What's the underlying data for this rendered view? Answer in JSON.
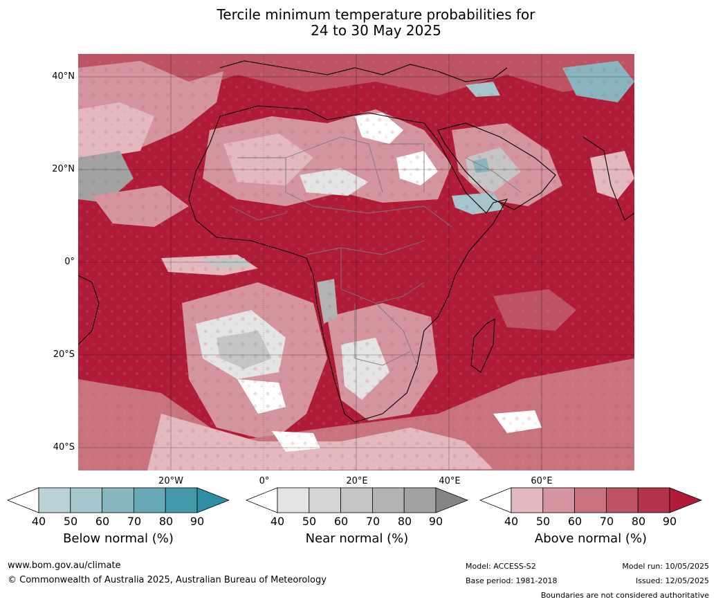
{
  "title": {
    "line1": "Tercile minimum temperature probabilities for",
    "line2": "24 to 30 May 2025"
  },
  "map": {
    "lat_labels": [
      "40°N",
      "20°N",
      "0°",
      "20°S",
      "40°S"
    ],
    "lon_labels": [
      "20°W",
      "0°",
      "20°E",
      "40°E",
      "60°E"
    ]
  },
  "legends": [
    {
      "title": "Below normal (%)",
      "ticks": [
        "40",
        "50",
        "60",
        "70",
        "80",
        "90"
      ],
      "colors": [
        "#ffffff",
        "#bcd2d9",
        "#a6c6cd",
        "#88b6c0",
        "#66a9b5",
        "#4499aa",
        "#2e8fa3"
      ]
    },
    {
      "title": "Near normal (%)",
      "ticks": [
        "40",
        "50",
        "60",
        "70",
        "80",
        "90"
      ],
      "colors": [
        "#ffffff",
        "#e4e4e4",
        "#d5d5d5",
        "#c5c5c5",
        "#b3b3b3",
        "#a2a2a2",
        "#858585"
      ]
    },
    {
      "title": "Above normal (%)",
      "ticks": [
        "40",
        "50",
        "60",
        "70",
        "80",
        "90"
      ],
      "colors": [
        "#ffffff",
        "#e3b9bf",
        "#d4959e",
        "#c8737d",
        "#bd5363",
        "#b3344a",
        "#b01c38"
      ]
    }
  ],
  "footer": {
    "website": "www.bom.gov.au/climate",
    "copyright": "© Commonwealth of Australia 2025, Australian Bureau of Meteorology",
    "model": "Model: ACCESS-S2",
    "base_period": "Base period: 1981-2018",
    "model_run": "Model run: 10/05/2025",
    "issued": "Issued: 12/05/2025",
    "disclaimer": "Boundaries are not considered authoritative"
  }
}
